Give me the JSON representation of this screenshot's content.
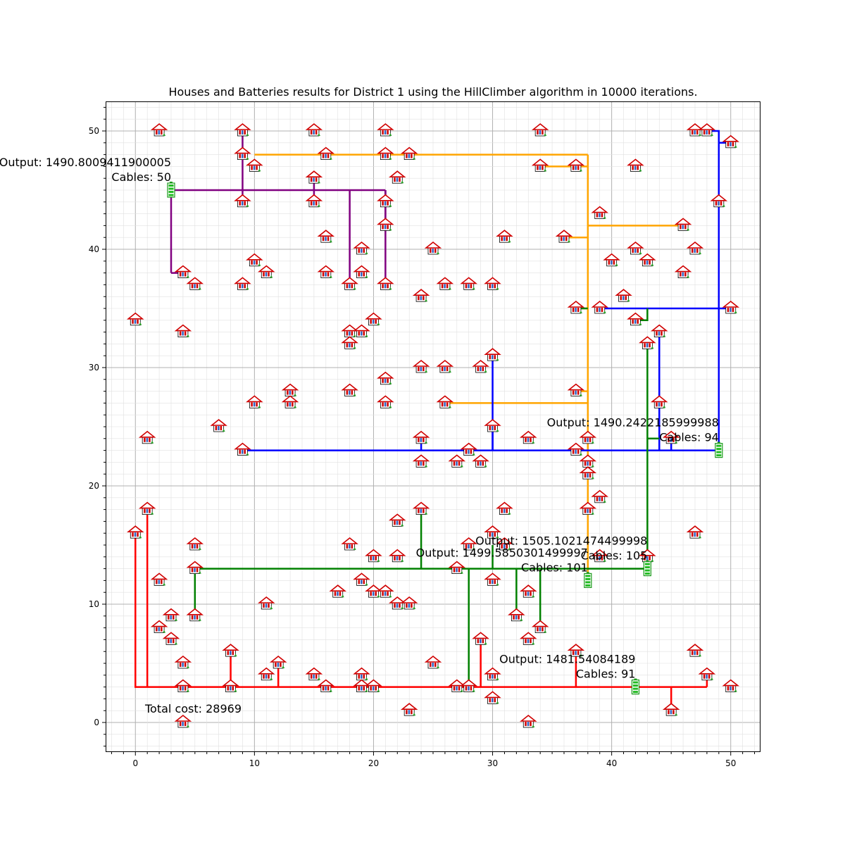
{
  "chart_data": {
    "type": "scatter",
    "title": "Houses and Batteries results for District 1 using the HillClimber algorithm in 10000 iterations.",
    "xlabel": "",
    "ylabel": "",
    "xlim": [
      -2.5,
      52.5
    ],
    "ylim": [
      -2.5,
      52.5
    ],
    "x_ticks": [
      0,
      10,
      20,
      30,
      40,
      50
    ],
    "y_ticks": [
      0,
      10,
      20,
      30,
      40,
      50
    ],
    "grid": "major and minor",
    "total_cost_label": "Total cost: 28969",
    "batteries": [
      {
        "x": 3,
        "y": 45,
        "color": "#800080",
        "output_label": "Output: 1490.8009411900005",
        "cables_label": "Cables: 50"
      },
      {
        "x": 49,
        "y": 23,
        "color": "#0000ff",
        "output_label": "Output: 1490.2422185999988",
        "cables_label": "Cables: 94"
      },
      {
        "x": 38,
        "y": 12,
        "color": "#ffa500",
        "output_label": "Output: 1499.5850301499997",
        "cables_label": "Cables: 101"
      },
      {
        "x": 43,
        "y": 13,
        "color": "#008000",
        "output_label": "Output: 1505.1021474499998",
        "cables_label": "Cables: 105"
      },
      {
        "x": 42,
        "y": 3,
        "color": "#ff0000",
        "output_label": "Output: 1481.54084189",
        "cables_label": "Cables: 91"
      }
    ],
    "houses": [
      [
        2,
        50
      ],
      [
        9,
        50
      ],
      [
        15,
        50
      ],
      [
        21,
        50
      ],
      [
        34,
        50
      ],
      [
        47,
        50
      ],
      [
        48,
        50
      ],
      [
        50,
        49
      ],
      [
        9,
        48
      ],
      [
        16,
        48
      ],
      [
        21,
        48
      ],
      [
        23,
        48
      ],
      [
        10,
        47
      ],
      [
        34,
        47
      ],
      [
        37,
        47
      ],
      [
        42,
        47
      ],
      [
        15,
        46
      ],
      [
        22,
        46
      ],
      [
        9,
        44
      ],
      [
        15,
        44
      ],
      [
        21,
        44
      ],
      [
        49,
        44
      ],
      [
        39,
        43
      ],
      [
        21,
        42
      ],
      [
        46,
        42
      ],
      [
        16,
        41
      ],
      [
        31,
        41
      ],
      [
        36,
        41
      ],
      [
        19,
        40
      ],
      [
        25,
        40
      ],
      [
        42,
        40
      ],
      [
        47,
        40
      ],
      [
        10,
        39
      ],
      [
        40,
        39
      ],
      [
        43,
        39
      ],
      [
        4,
        38
      ],
      [
        11,
        38
      ],
      [
        16,
        38
      ],
      [
        19,
        38
      ],
      [
        46,
        38
      ],
      [
        5,
        37
      ],
      [
        9,
        37
      ],
      [
        18,
        37
      ],
      [
        21,
        37
      ],
      [
        26,
        37
      ],
      [
        28,
        37
      ],
      [
        30,
        37
      ],
      [
        24,
        36
      ],
      [
        41,
        36
      ],
      [
        37,
        35
      ],
      [
        39,
        35
      ],
      [
        50,
        35
      ],
      [
        0,
        34
      ],
      [
        20,
        34
      ],
      [
        42,
        34
      ],
      [
        4,
        33
      ],
      [
        18,
        33
      ],
      [
        19,
        33
      ],
      [
        44,
        33
      ],
      [
        18,
        32
      ],
      [
        43,
        32
      ],
      [
        30,
        31
      ],
      [
        21,
        29
      ],
      [
        24,
        30
      ],
      [
        26,
        30
      ],
      [
        29,
        30
      ],
      [
        13,
        28
      ],
      [
        18,
        28
      ],
      [
        37,
        28
      ],
      [
        10,
        27
      ],
      [
        13,
        27
      ],
      [
        21,
        27
      ],
      [
        26,
        27
      ],
      [
        44,
        27
      ],
      [
        7,
        25
      ],
      [
        30,
        25
      ],
      [
        1,
        24
      ],
      [
        24,
        24
      ],
      [
        33,
        24
      ],
      [
        38,
        24
      ],
      [
        45,
        24
      ],
      [
        9,
        23
      ],
      [
        28,
        23
      ],
      [
        37,
        23
      ],
      [
        24,
        22
      ],
      [
        27,
        22
      ],
      [
        29,
        22
      ],
      [
        38,
        22
      ],
      [
        38,
        21
      ],
      [
        39,
        19
      ],
      [
        1,
        18
      ],
      [
        24,
        18
      ],
      [
        31,
        18
      ],
      [
        38,
        18
      ],
      [
        22,
        17
      ],
      [
        0,
        16
      ],
      [
        30,
        16
      ],
      [
        47,
        16
      ],
      [
        5,
        15
      ],
      [
        18,
        15
      ],
      [
        31,
        15
      ],
      [
        28,
        15
      ],
      [
        20,
        14
      ],
      [
        22,
        14
      ],
      [
        39,
        14
      ],
      [
        43,
        14
      ],
      [
        5,
        13
      ],
      [
        27,
        13
      ],
      [
        2,
        12
      ],
      [
        19,
        12
      ],
      [
        30,
        12
      ],
      [
        17,
        11
      ],
      [
        20,
        11
      ],
      [
        21,
        11
      ],
      [
        33,
        11
      ],
      [
        11,
        10
      ],
      [
        22,
        10
      ],
      [
        23,
        10
      ],
      [
        3,
        9
      ],
      [
        5,
        9
      ],
      [
        32,
        9
      ],
      [
        2,
        8
      ],
      [
        34,
        8
      ],
      [
        3,
        7
      ],
      [
        29,
        7
      ],
      [
        33,
        7
      ],
      [
        8,
        6
      ],
      [
        37,
        6
      ],
      [
        47,
        6
      ],
      [
        4,
        5
      ],
      [
        12,
        5
      ],
      [
        25,
        5
      ],
      [
        11,
        4
      ],
      [
        15,
        4
      ],
      [
        19,
        4
      ],
      [
        30,
        4
      ],
      [
        48,
        4
      ],
      [
        4,
        3
      ],
      [
        8,
        3
      ],
      [
        16,
        3
      ],
      [
        19,
        3
      ],
      [
        20,
        3
      ],
      [
        27,
        3
      ],
      [
        28,
        3
      ],
      [
        50,
        3
      ],
      [
        30,
        2
      ],
      [
        23,
        1
      ],
      [
        45,
        1
      ],
      [
        4,
        0
      ],
      [
        33,
        0
      ]
    ],
    "cables": [
      {
        "color": "#800080",
        "paths": [
          [
            [
              9,
              50
            ],
            [
              9,
              45
            ],
            [
              3,
              45
            ]
          ],
          [
            [
              3,
              38
            ],
            [
              4,
              38
            ]
          ],
          [
            [
              3,
              45
            ],
            [
              3,
              38
            ]
          ],
          [
            [
              9,
              44
            ],
            [
              9,
              45
            ]
          ],
          [
            [
              15,
              46
            ],
            [
              15,
              45
            ]
          ],
          [
            [
              15,
              44
            ],
            [
              15,
              45
            ]
          ],
          [
            [
              18,
              37
            ],
            [
              18,
              45
            ]
          ],
          [
            [
              21,
              37
            ],
            [
              21,
              45
            ]
          ],
          [
            [
              21,
              44
            ],
            [
              21,
              45
            ]
          ],
          [
            [
              9,
              45
            ],
            [
              21,
              45
            ]
          ],
          [
            [
              21,
              42
            ],
            [
              21,
              45
            ]
          ]
        ]
      },
      {
        "color": "#ffa500",
        "paths": [
          [
            [
              10,
              48
            ],
            [
              38,
              48
            ]
          ],
          [
            [
              38,
              48
            ],
            [
              38,
              12
            ]
          ],
          [
            [
              34,
              47
            ],
            [
              38,
              47
            ]
          ],
          [
            [
              38,
              42
            ],
            [
              46,
              42
            ]
          ],
          [
            [
              36,
              41
            ],
            [
              38,
              41
            ]
          ],
          [
            [
              37,
              35
            ],
            [
              38,
              35
            ]
          ],
          [
            [
              26,
              27
            ],
            [
              38,
              27
            ]
          ],
          [
            [
              37,
              28
            ],
            [
              38,
              28
            ]
          ],
          [
            [
              37,
              23
            ],
            [
              38,
              23
            ]
          ],
          [
            [
              38,
              24
            ],
            [
              38,
              21
            ]
          ]
        ]
      },
      {
        "color": "#0000ff",
        "paths": [
          [
            [
              48,
              50
            ],
            [
              49,
              50
            ],
            [
              49,
              23
            ]
          ],
          [
            [
              50,
              49
            ],
            [
              49,
              49
            ]
          ],
          [
            [
              39,
              35
            ],
            [
              49,
              35
            ]
          ],
          [
            [
              50,
              35
            ],
            [
              49,
              35
            ]
          ],
          [
            [
              44,
              33
            ],
            [
              44,
              23
            ]
          ],
          [
            [
              45,
              24
            ],
            [
              45,
              23
            ]
          ],
          [
            [
              9,
              23
            ],
            [
              49,
              23
            ]
          ],
          [
            [
              30,
              31
            ],
            [
              30,
              23
            ]
          ],
          [
            [
              24,
              24
            ],
            [
              24,
              23
            ]
          ],
          [
            [
              30,
              25
            ],
            [
              30,
              23
            ]
          ]
        ]
      },
      {
        "color": "#008000",
        "paths": [
          [
            [
              43,
              32
            ],
            [
              43,
              13
            ]
          ],
          [
            [
              42,
              34
            ],
            [
              43,
              34
            ],
            [
              43,
              35
            ]
          ],
          [
            [
              43,
              24
            ],
            [
              44,
              24
            ]
          ],
          [
            [
              5,
              13
            ],
            [
              43,
              13
            ]
          ],
          [
            [
              5,
              9
            ],
            [
              5,
              13
            ]
          ],
          [
            [
              24,
              18
            ],
            [
              24,
              13
            ]
          ],
          [
            [
              28,
              13
            ],
            [
              28,
              3
            ]
          ],
          [
            [
              30,
              15
            ],
            [
              30,
              13
            ]
          ],
          [
            [
              32,
              13
            ],
            [
              32,
              9
            ]
          ],
          [
            [
              34,
              13
            ],
            [
              34,
              8
            ]
          ],
          [
            [
              37,
              35
            ],
            [
              38,
              35
            ]
          ]
        ]
      },
      {
        "color": "#ff0000",
        "paths": [
          [
            [
              0,
              16
            ],
            [
              0,
              3
            ],
            [
              48,
              3
            ]
          ],
          [
            [
              1,
              18
            ],
            [
              1,
              3
            ]
          ],
          [
            [
              8,
              6
            ],
            [
              8,
              3
            ]
          ],
          [
            [
              12,
              5
            ],
            [
              12,
              3
            ]
          ],
          [
            [
              29,
              7
            ],
            [
              29,
              3
            ]
          ],
          [
            [
              37,
              6
            ],
            [
              37,
              3
            ]
          ],
          [
            [
              45,
              1
            ],
            [
              45,
              3
            ]
          ],
          [
            [
              48,
              4
            ],
            [
              48,
              3
            ]
          ]
        ]
      }
    ]
  }
}
